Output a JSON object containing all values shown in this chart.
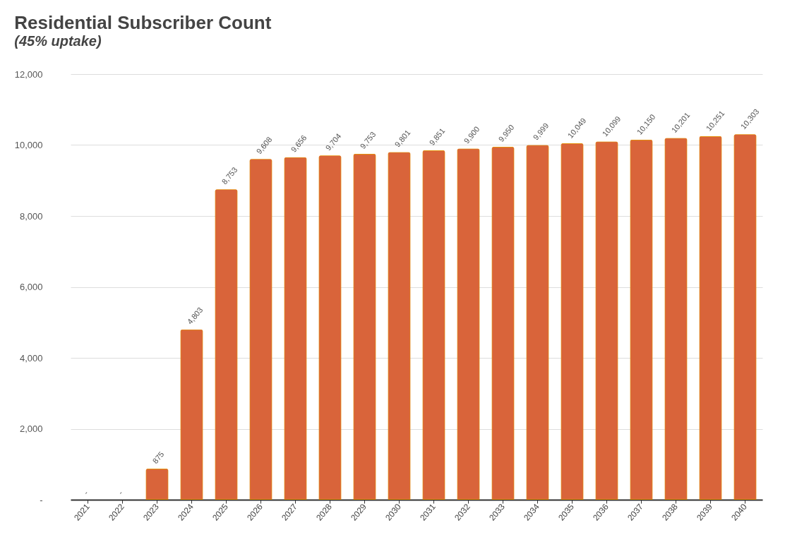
{
  "chart_data": {
    "type": "bar",
    "title": "Residential Subscriber Count",
    "subtitle": "(45% uptake)",
    "categories": [
      "2021",
      "2022",
      "2023",
      "2024",
      "2025",
      "2026",
      "2027",
      "2028",
      "2029",
      "2030",
      "2031",
      "2032",
      "2033",
      "2034",
      "2035",
      "2036",
      "2037",
      "2038",
      "2039",
      "2040"
    ],
    "values": [
      0,
      0,
      875,
      4803,
      8753,
      9608,
      9656,
      9704,
      9753,
      9801,
      9851,
      9900,
      9950,
      9999,
      10049,
      10099,
      10150,
      10201,
      10251,
      10303
    ],
    "value_labels": [
      "-",
      "-",
      "875",
      "4,803",
      "8,753",
      "9,608",
      "9,656",
      "9,704",
      "9,753",
      "9,801",
      "9,851",
      "9,900",
      "9,950",
      "9,999",
      "10,049",
      "10,099",
      "10,150",
      "10,201",
      "10,251",
      "10,303"
    ],
    "color": "#d9643a",
    "ylim": [
      0,
      12000
    ],
    "yticks": [
      {
        "value": 0,
        "label": "-"
      },
      {
        "value": 2000,
        "label": "2,000"
      },
      {
        "value": 4000,
        "label": "4,000"
      },
      {
        "value": 6000,
        "label": "6,000"
      },
      {
        "value": 8000,
        "label": "8,000"
      },
      {
        "value": 10000,
        "label": "10,000"
      },
      {
        "value": 12000,
        "label": "12,000"
      }
    ],
    "grid": "y"
  }
}
